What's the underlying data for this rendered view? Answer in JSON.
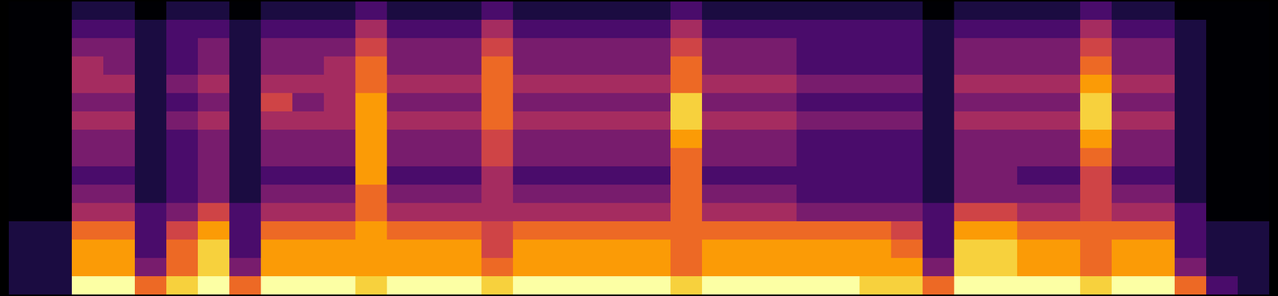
{
  "chart_data": {
    "type": "heatmap",
    "color": "inferno",
    "tick_labels": false,
    "zlim": [
      0,
      9
    ],
    "values": [
      [
        0,
        0,
        1,
        1,
        0,
        1,
        1,
        0,
        1,
        1,
        1,
        2,
        1,
        1,
        1,
        2,
        1,
        1,
        1,
        1,
        1,
        2,
        1,
        1,
        1,
        1,
        1,
        1,
        1,
        0,
        1,
        1,
        1,
        1,
        2,
        1,
        1,
        0,
        0,
        0
      ],
      [
        0,
        0,
        2,
        2,
        1,
        2,
        2,
        1,
        2,
        2,
        2,
        4,
        2,
        2,
        2,
        4,
        2,
        2,
        2,
        2,
        2,
        4,
        2,
        2,
        2,
        2,
        2,
        2,
        2,
        1,
        2,
        2,
        2,
        2,
        4,
        2,
        2,
        1,
        0,
        0
      ],
      [
        0,
        0,
        3,
        3,
        1,
        2,
        3,
        1,
        3,
        3,
        3,
        5,
        3,
        3,
        3,
        5,
        3,
        3,
        3,
        3,
        3,
        5,
        3,
        3,
        3,
        2,
        2,
        2,
        2,
        1,
        3,
        3,
        3,
        3,
        5,
        3,
        3,
        1,
        0,
        0
      ],
      [
        0,
        0,
        4,
        3,
        1,
        2,
        3,
        1,
        3,
        3,
        4,
        6,
        3,
        3,
        3,
        6,
        3,
        3,
        3,
        3,
        3,
        6,
        3,
        3,
        3,
        2,
        2,
        2,
        2,
        1,
        3,
        3,
        3,
        3,
        6,
        3,
        3,
        1,
        0,
        0
      ],
      [
        0,
        0,
        4,
        4,
        1,
        3,
        4,
        1,
        4,
        4,
        4,
        6,
        4,
        4,
        4,
        6,
        4,
        4,
        4,
        4,
        4,
        6,
        4,
        4,
        4,
        3,
        3,
        3,
        3,
        1,
        4,
        4,
        4,
        4,
        7,
        4,
        4,
        1,
        0,
        0
      ],
      [
        0,
        0,
        3,
        3,
        1,
        2,
        3,
        1,
        5,
        3,
        4,
        7,
        3,
        3,
        3,
        6,
        3,
        3,
        3,
        3,
        3,
        8,
        3,
        3,
        3,
        2,
        2,
        2,
        2,
        1,
        3,
        3,
        3,
        3,
        8,
        3,
        3,
        1,
        0,
        0
      ],
      [
        0,
        0,
        4,
        4,
        1,
        3,
        4,
        1,
        4,
        4,
        4,
        7,
        4,
        4,
        4,
        6,
        4,
        4,
        4,
        4,
        4,
        8,
        4,
        4,
        4,
        3,
        3,
        3,
        3,
        1,
        4,
        4,
        4,
        4,
        8,
        4,
        4,
        1,
        0,
        0
      ],
      [
        0,
        0,
        3,
        3,
        1,
        2,
        3,
        1,
        3,
        3,
        3,
        7,
        3,
        3,
        3,
        5,
        3,
        3,
        3,
        3,
        3,
        7,
        3,
        3,
        3,
        2,
        2,
        2,
        2,
        1,
        3,
        3,
        3,
        3,
        7,
        3,
        3,
        1,
        0,
        0
      ],
      [
        0,
        0,
        3,
        3,
        1,
        2,
        3,
        1,
        3,
        3,
        3,
        7,
        3,
        3,
        3,
        5,
        3,
        3,
        3,
        3,
        3,
        6,
        3,
        3,
        3,
        2,
        2,
        2,
        2,
        1,
        3,
        3,
        3,
        3,
        6,
        3,
        3,
        1,
        0,
        0
      ],
      [
        0,
        0,
        2,
        2,
        1,
        2,
        3,
        1,
        2,
        2,
        2,
        7,
        2,
        2,
        2,
        4,
        2,
        2,
        2,
        2,
        2,
        6,
        2,
        2,
        2,
        2,
        2,
        2,
        2,
        1,
        3,
        3,
        2,
        2,
        5,
        2,
        2,
        1,
        0,
        0
      ],
      [
        0,
        0,
        3,
        3,
        1,
        2,
        3,
        1,
        3,
        3,
        3,
        6,
        3,
        3,
        3,
        4,
        3,
        3,
        3,
        3,
        3,
        6,
        3,
        3,
        3,
        2,
        2,
        2,
        2,
        1,
        3,
        3,
        3,
        3,
        5,
        3,
        3,
        1,
        0,
        0
      ],
      [
        0,
        0,
        4,
        4,
        2,
        3,
        5,
        2,
        4,
        4,
        4,
        6,
        4,
        4,
        4,
        4,
        4,
        4,
        4,
        4,
        4,
        6,
        4,
        4,
        4,
        3,
        3,
        3,
        3,
        2,
        5,
        5,
        4,
        4,
        5,
        4,
        4,
        2,
        0,
        0
      ],
      [
        1,
        1,
        6,
        6,
        2,
        5,
        7,
        2,
        6,
        6,
        6,
        7,
        6,
        6,
        6,
        5,
        6,
        6,
        6,
        6,
        6,
        6,
        6,
        6,
        6,
        6,
        6,
        6,
        5,
        2,
        7,
        7,
        6,
        6,
        6,
        6,
        6,
        2,
        1,
        1
      ],
      [
        1,
        1,
        7,
        7,
        2,
        6,
        8,
        2,
        7,
        7,
        7,
        7,
        7,
        7,
        7,
        5,
        7,
        7,
        7,
        7,
        7,
        6,
        7,
        7,
        7,
        7,
        7,
        7,
        6,
        2,
        8,
        8,
        7,
        7,
        6,
        7,
        7,
        2,
        1,
        1
      ],
      [
        1,
        1,
        7,
        7,
        3,
        6,
        8,
        3,
        7,
        7,
        7,
        7,
        7,
        7,
        7,
        6,
        7,
        7,
        7,
        7,
        7,
        6,
        7,
        7,
        7,
        7,
        7,
        7,
        7,
        3,
        8,
        8,
        7,
        7,
        6,
        7,
        7,
        3,
        1,
        1
      ],
      [
        1,
        1,
        9,
        9,
        6,
        8,
        9,
        6,
        9,
        9,
        9,
        8,
        9,
        9,
        9,
        8,
        9,
        9,
        9,
        9,
        9,
        8,
        9,
        9,
        9,
        9,
        9,
        8,
        8,
        6,
        9,
        9,
        9,
        9,
        8,
        9,
        9,
        6,
        2,
        1
      ]
    ]
  }
}
